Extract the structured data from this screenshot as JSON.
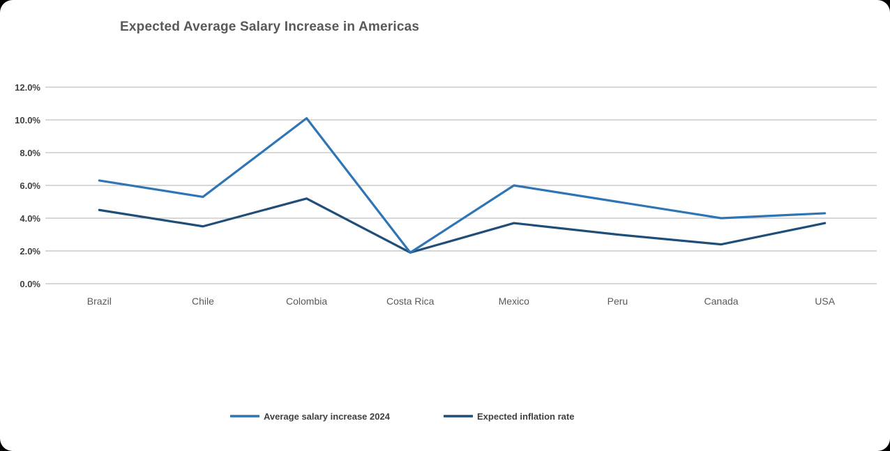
{
  "chart_data": {
    "type": "line",
    "title": "Expected Average Salary Increase in Americas",
    "categories": [
      "Brazil",
      "Chile",
      "Colombia",
      "Costa Rica",
      "Mexico",
      "Peru",
      "Canada",
      "USA"
    ],
    "series": [
      {
        "name": "Average salary increase 2024",
        "color": "#2E75B6",
        "values": [
          6.3,
          5.3,
          10.1,
          1.9,
          6.0,
          5.0,
          4.0,
          4.3
        ]
      },
      {
        "name": "Expected inflation rate",
        "color": "#1F4E79",
        "values": [
          4.5,
          3.5,
          5.2,
          1.9,
          3.7,
          3.0,
          2.4,
          3.7
        ]
      }
    ],
    "xlabel": "",
    "ylabel": "",
    "ylim": [
      0,
      12
    ],
    "ytick_step": 2,
    "ytick_labels": [
      "0.0%",
      "2.0%",
      "4.0%",
      "6.0%",
      "8.0%",
      "10.0%",
      "12.0%"
    ],
    "grid": true,
    "legend_position": "bottom",
    "colors": {
      "gridline": "#BFBFBF",
      "title": "#595959",
      "axis_label": "#404040",
      "category_label": "#595959",
      "background": "#FFFFFF"
    }
  }
}
